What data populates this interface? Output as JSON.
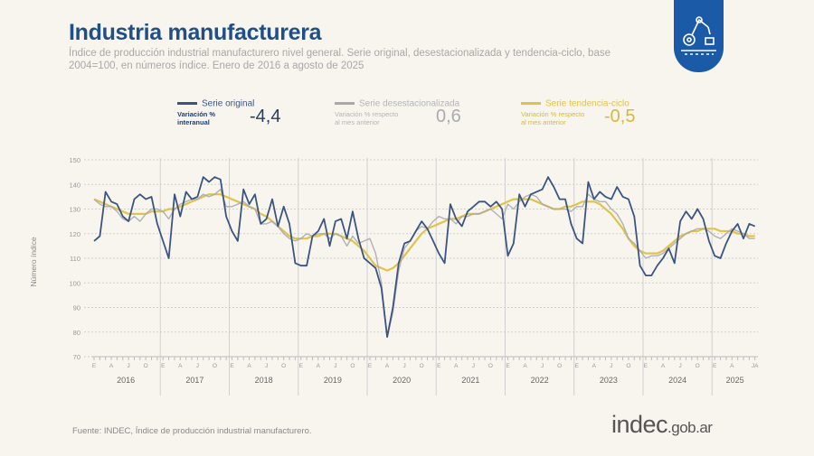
{
  "header": {
    "title": "Industria manufacturera",
    "subtitle": "Índice de producción industrial manufacturero nivel general. Serie original, desestacionalizada y tendencia-ciclo, base 2004=100, en números índice. Enero de 2016 a agosto de 2025"
  },
  "legend": [
    {
      "name": "Serie original",
      "variation_label": "Variación % interanual",
      "value": "-4,4",
      "color": "#3b5580"
    },
    {
      "name": "Serie desestacionalizada",
      "variation_label": "Variación % respecto al mes anterior",
      "value": "0,6",
      "color": "#a8aab0"
    },
    {
      "name": "Serie tendencia-ciclo",
      "variation_label": "Variación % respecto al mes anterior",
      "value": "-0,5",
      "color": "#e0c34a"
    }
  ],
  "footer": {
    "source": "Fuente: INDEC, Índice de producción industrial manufacturero.",
    "brand_main": "indec",
    "brand_suffix": ".gob.ar"
  },
  "logo": {
    "icon": "industrial-robot-arm-icon",
    "color": "#1a5aa6"
  },
  "chart_data": {
    "type": "line",
    "ylabel": "Número índice",
    "ylim": [
      70,
      150
    ],
    "yticks": [
      70,
      80,
      90,
      100,
      110,
      120,
      130,
      140,
      150
    ],
    "grid": true,
    "years": [
      "2016",
      "2017",
      "2018",
      "2019",
      "2020",
      "2021",
      "2022",
      "2023",
      "2024",
      "2025"
    ],
    "month_tick_labels": [
      "E",
      "A",
      "J",
      "O"
    ],
    "last_year_tick_labels": [
      "E",
      "A",
      "JA"
    ],
    "x_start": "2016-01",
    "x_end": "2025-08",
    "series": [
      {
        "name": "Serie original",
        "color": "#3b5580",
        "values": [
          117,
          119,
          137,
          133,
          132,
          127,
          125,
          134,
          136,
          134,
          135,
          124,
          117,
          110,
          136,
          127,
          137,
          134,
          135,
          143,
          141,
          143,
          142,
          127,
          121,
          117,
          138,
          132,
          136,
          124,
          126,
          134,
          123,
          131,
          124,
          108,
          107,
          107,
          119,
          121,
          126,
          115,
          125,
          126,
          118,
          129,
          118,
          110,
          108,
          106,
          98,
          78,
          90,
          108,
          116,
          117,
          121,
          125,
          122,
          117,
          112,
          108,
          132,
          126,
          123,
          129,
          131,
          133,
          133,
          131,
          133,
          130,
          111,
          116,
          136,
          131,
          136,
          137,
          138,
          143,
          139,
          134,
          134,
          124,
          118,
          116,
          141,
          134,
          137,
          135,
          134,
          139,
          135,
          134,
          127,
          107,
          103,
          103,
          107,
          110,
          114,
          108,
          125,
          129,
          126,
          130,
          126,
          117,
          111,
          110,
          116,
          121,
          124,
          118,
          124,
          123
        ]
      },
      {
        "name": "Serie desestacionalizada",
        "color": "#a8aab0",
        "values": [
          134,
          132,
          131,
          131,
          129,
          126,
          125,
          127,
          125,
          128,
          130,
          130,
          129,
          126,
          130,
          132,
          133,
          134,
          134,
          136,
          135,
          136,
          138,
          131,
          131,
          132,
          133,
          131,
          130,
          124,
          124,
          125,
          123,
          120,
          118,
          117,
          118,
          120,
          119,
          120,
          120,
          118,
          120,
          119,
          115,
          119,
          116,
          117,
          118,
          112,
          100,
          78,
          88,
          105,
          114,
          117,
          121,
          123,
          122,
          125,
          127,
          126,
          126,
          124,
          127,
          127,
          128,
          128,
          129,
          130,
          128,
          126,
          132,
          130,
          133,
          135,
          136,
          135,
          132,
          131,
          130,
          130,
          130,
          129,
          131,
          131,
          136,
          134,
          133,
          133,
          130,
          128,
          124,
          118,
          116,
          113,
          110,
          111,
          111,
          112,
          114,
          116,
          118,
          120,
          121,
          122,
          122,
          121,
          119,
          118,
          120,
          122,
          121,
          120,
          118,
          118
        ]
      },
      {
        "name": "Serie tendencia-ciclo",
        "color": "#e0c34a",
        "values": [
          134,
          133,
          132,
          131,
          130,
          129,
          128,
          128,
          128,
          128,
          129,
          129,
          129,
          130,
          130,
          131,
          132,
          133,
          134,
          135,
          136,
          136,
          136,
          135,
          134,
          133,
          132,
          131,
          130,
          128,
          127,
          125,
          123,
          121,
          119,
          118,
          118,
          118,
          119,
          119,
          120,
          120,
          120,
          119,
          118,
          117,
          115,
          113,
          110,
          107,
          106,
          105,
          106,
          108,
          111,
          114,
          117,
          120,
          122,
          123,
          124,
          125,
          126,
          126,
          127,
          128,
          128,
          128,
          129,
          130,
          131,
          132,
          133,
          134,
          134,
          134,
          134,
          133,
          132,
          131,
          130,
          130,
          131,
          131,
          132,
          133,
          133,
          133,
          132,
          130,
          128,
          125,
          122,
          118,
          115,
          113,
          112,
          112,
          112,
          113,
          115,
          117,
          119,
          120,
          121,
          121,
          122,
          122,
          122,
          121,
          121,
          121,
          120,
          120,
          119,
          119
        ]
      }
    ]
  }
}
